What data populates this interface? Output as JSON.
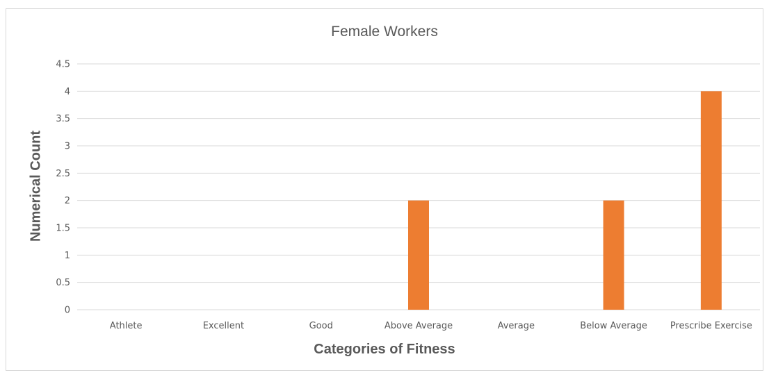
{
  "chart_data": {
    "type": "bar",
    "title": "Female Workers",
    "xlabel": "Categories of Fitness",
    "ylabel": "Numerical Count",
    "categories": [
      "Athlete",
      "Excellent",
      "Good",
      "Above Average",
      "Average",
      "Below Average",
      "Prescribe Exercise"
    ],
    "values": [
      0,
      0,
      0,
      2,
      0,
      2,
      4
    ],
    "ylim": [
      0,
      4.5
    ],
    "yticks": [
      "0",
      "0.5",
      "1",
      "1.5",
      "2",
      "2.5",
      "3",
      "3.5",
      "4",
      "4.5"
    ],
    "grid": true,
    "legend": "none",
    "bar_color": "#ED7D31",
    "grid_color": "#D9D9D9"
  }
}
